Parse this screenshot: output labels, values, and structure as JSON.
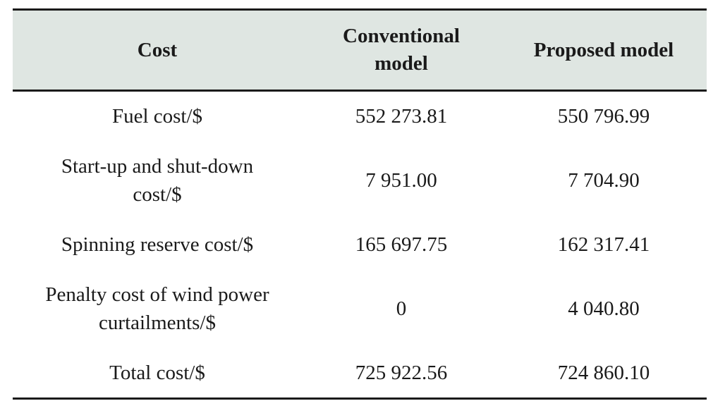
{
  "table": {
    "headers": [
      "Cost",
      "Conventional model",
      "Proposed model"
    ],
    "rows": [
      [
        "Fuel cost/$",
        "552 273.81",
        "550 796.99"
      ],
      [
        "Start-up and shut-down cost/$",
        "7 951.00",
        "7 704.90"
      ],
      [
        "Spinning reserve cost/$",
        "165 697.75",
        "162 317.41"
      ],
      [
        "Penalty cost of wind power curtailments/$",
        "0",
        "4 040.80"
      ],
      [
        "Total cost/$",
        "725 922.56",
        "724 860.10"
      ]
    ]
  }
}
